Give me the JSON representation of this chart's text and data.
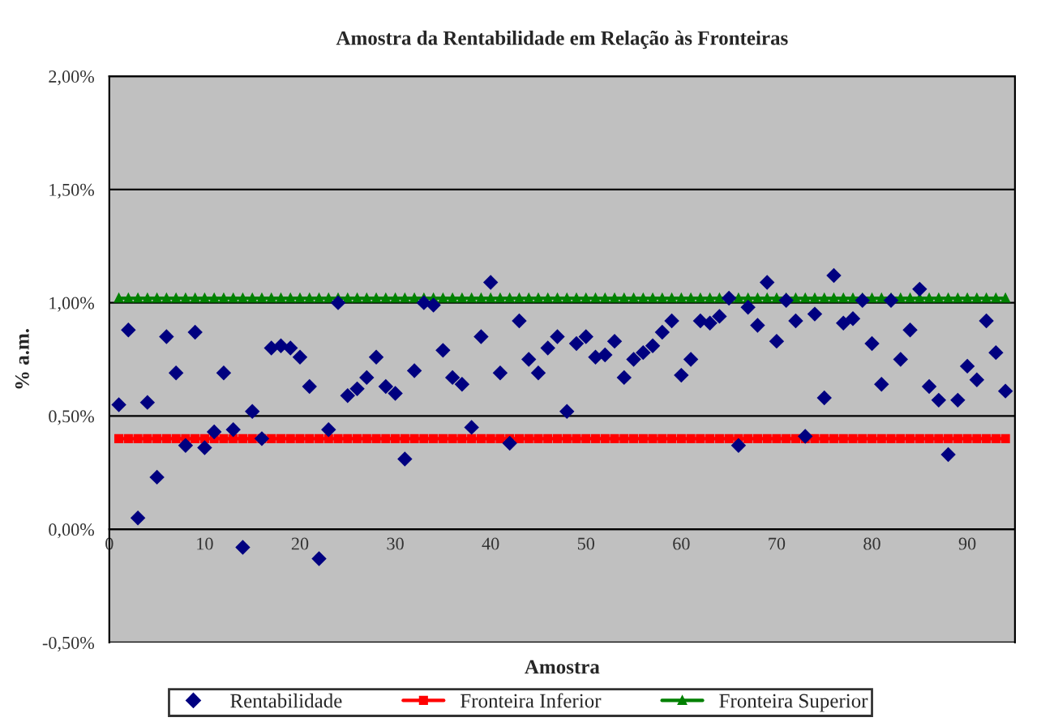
{
  "chart_data": {
    "type": "scatter",
    "title": "Amostra da Rentabilidade em Relação às Fronteiras",
    "xlabel": "Amostra",
    "ylabel": "% a.m.",
    "x": [
      1,
      2,
      3,
      4,
      5,
      6,
      7,
      8,
      9,
      10,
      11,
      12,
      13,
      14,
      15,
      16,
      17,
      18,
      19,
      20,
      21,
      22,
      23,
      24,
      25,
      26,
      27,
      28,
      29,
      30,
      31,
      32,
      33,
      34,
      35,
      36,
      37,
      38,
      39,
      40,
      41,
      42,
      43,
      44,
      45,
      46,
      47,
      48,
      49,
      50,
      51,
      52,
      53,
      54,
      55,
      56,
      57,
      58,
      59,
      60,
      61,
      62,
      63,
      64,
      65,
      66,
      67,
      68,
      69,
      70,
      71,
      72,
      73,
      74,
      75,
      76,
      77,
      78,
      79,
      80,
      81,
      82,
      83,
      84,
      85,
      86,
      87,
      88,
      89,
      90,
      91,
      92,
      93,
      94
    ],
    "series": [
      {
        "name": "Rentabilidade",
        "marker": "diamond",
        "color": "#000080",
        "values": [
          0.55,
          0.88,
          0.05,
          0.56,
          0.23,
          0.85,
          0.69,
          0.37,
          0.87,
          0.36,
          0.43,
          0.69,
          0.44,
          -0.08,
          0.52,
          0.4,
          0.8,
          0.81,
          0.8,
          0.76,
          0.63,
          -0.13,
          0.44,
          1.0,
          0.59,
          0.62,
          0.67,
          0.76,
          0.63,
          0.6,
          0.31,
          0.7,
          1.0,
          0.99,
          0.79,
          0.67,
          0.64,
          0.45,
          0.85,
          1.09,
          0.69,
          0.38,
          0.92,
          0.75,
          0.69,
          0.8,
          0.85,
          0.52,
          0.82,
          0.85,
          0.76,
          0.77,
          0.83,
          0.67,
          0.75,
          0.78,
          0.81,
          0.87,
          0.92,
          0.68,
          0.75,
          0.92,
          0.91,
          0.94,
          1.02,
          0.37,
          0.98,
          0.9,
          1.09,
          0.83,
          1.01,
          0.92,
          0.41,
          0.95,
          0.58,
          1.12,
          0.91,
          0.93,
          1.01,
          0.82,
          0.64,
          1.01,
          0.75,
          0.88,
          1.06,
          0.63,
          0.57,
          0.33,
          0.57,
          0.72,
          0.66,
          0.92,
          0.78,
          0.61
        ]
      },
      {
        "name": "Fronteira Inferior",
        "type": "line",
        "marker": "square",
        "color": "#ff0000",
        "values": [
          0.4,
          0.4,
          0.4,
          0.4,
          0.4,
          0.4,
          0.4,
          0.4,
          0.4,
          0.4,
          0.4,
          0.4,
          0.4,
          0.4,
          0.4,
          0.4,
          0.4,
          0.4,
          0.4,
          0.4,
          0.4,
          0.4,
          0.4,
          0.4,
          0.4,
          0.4,
          0.4,
          0.4,
          0.4,
          0.4,
          0.4,
          0.4,
          0.4,
          0.4,
          0.4,
          0.4,
          0.4,
          0.4,
          0.4,
          0.4,
          0.4,
          0.4,
          0.4,
          0.4,
          0.4,
          0.4,
          0.4,
          0.4,
          0.4,
          0.4,
          0.4,
          0.4,
          0.4,
          0.4,
          0.4,
          0.4,
          0.4,
          0.4,
          0.4,
          0.4,
          0.4,
          0.4,
          0.4,
          0.4,
          0.4,
          0.4,
          0.4,
          0.4,
          0.4,
          0.4,
          0.4,
          0.4,
          0.4,
          0.4,
          0.4,
          0.4,
          0.4,
          0.4,
          0.4,
          0.4,
          0.4,
          0.4,
          0.4,
          0.4,
          0.4,
          0.4,
          0.4,
          0.4,
          0.4,
          0.4,
          0.4,
          0.4,
          0.4,
          0.4
        ]
      },
      {
        "name": "Fronteira Superior",
        "type": "line",
        "marker": "triangle",
        "color": "#008000",
        "values": [
          1.02,
          1.02,
          1.02,
          1.02,
          1.02,
          1.02,
          1.02,
          1.02,
          1.02,
          1.02,
          1.02,
          1.02,
          1.02,
          1.02,
          1.02,
          1.02,
          1.02,
          1.02,
          1.02,
          1.02,
          1.02,
          1.02,
          1.02,
          1.02,
          1.02,
          1.02,
          1.02,
          1.02,
          1.02,
          1.02,
          1.02,
          1.02,
          1.02,
          1.02,
          1.02,
          1.02,
          1.02,
          1.02,
          1.02,
          1.02,
          1.02,
          1.02,
          1.02,
          1.02,
          1.02,
          1.02,
          1.02,
          1.02,
          1.02,
          1.02,
          1.02,
          1.02,
          1.02,
          1.02,
          1.02,
          1.02,
          1.02,
          1.02,
          1.02,
          1.02,
          1.02,
          1.02,
          1.02,
          1.02,
          1.02,
          1.02,
          1.02,
          1.02,
          1.02,
          1.02,
          1.02,
          1.02,
          1.02,
          1.02,
          1.02,
          1.02,
          1.02,
          1.02,
          1.02,
          1.02,
          1.02,
          1.02,
          1.02,
          1.02,
          1.02,
          1.02,
          1.02,
          1.02,
          1.02,
          1.02,
          1.02,
          1.02,
          1.02,
          1.02
        ]
      }
    ],
    "xlim": [
      0,
      95
    ],
    "xticks": [
      0,
      10,
      20,
      30,
      40,
      50,
      60,
      70,
      80,
      90
    ],
    "ylim": [
      -0.5,
      2.0
    ],
    "yticks": [
      {
        "value": -0.5,
        "label": "-0,50%"
      },
      {
        "value": 0,
        "label": "0,00%"
      },
      {
        "value": 0.5,
        "label": "0,50%"
      },
      {
        "value": 1.0,
        "label": "1,00%"
      },
      {
        "value": 1.5,
        "label": "1,50%"
      },
      {
        "value": 2.0,
        "label": "2,00%"
      }
    ],
    "grid": "y",
    "legend": "bottom"
  }
}
